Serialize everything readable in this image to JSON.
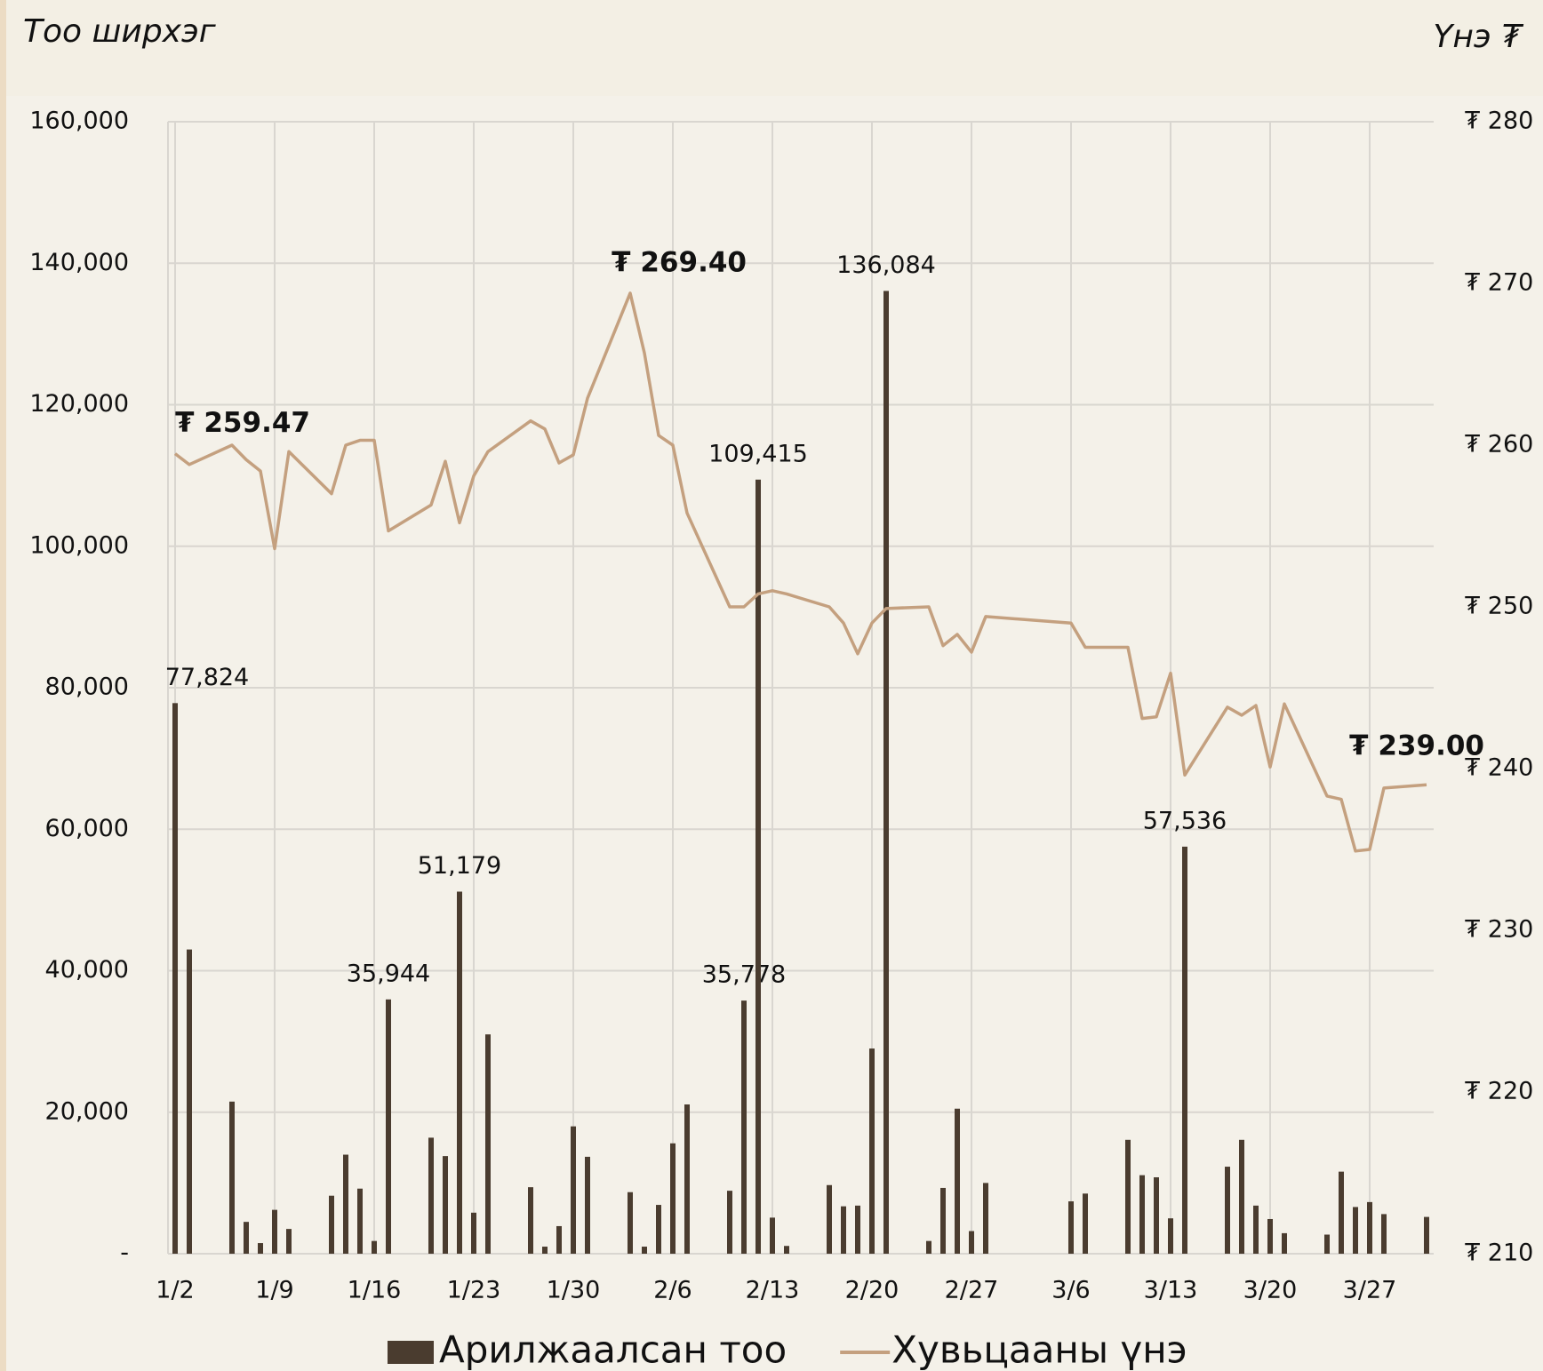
{
  "chart_data": {
    "type": "bar_line",
    "y_label": "Тоо ширхэг",
    "y2_label": "Үнэ ₮",
    "x": [
      "1/2",
      "1/3",
      "1/6",
      "1/7",
      "1/8",
      "1/9",
      "1/10",
      "1/13",
      "1/14",
      "1/15",
      "1/16",
      "1/17",
      "1/20",
      "1/21",
      "1/22",
      "1/23",
      "1/24",
      "1/27",
      "1/28",
      "1/29",
      "1/30",
      "1/31",
      "2/3",
      "2/4",
      "2/5",
      "2/6",
      "2/7",
      "2/10",
      "2/11",
      "2/12",
      "2/13",
      "2/14",
      "2/17",
      "2/18",
      "2/19",
      "2/20",
      "2/21",
      "2/24",
      "2/25",
      "2/26",
      "2/27",
      "2/28",
      "3/6",
      "3/7",
      "3/10",
      "3/11",
      "3/12",
      "3/13",
      "3/14",
      "3/17",
      "3/18",
      "3/19",
      "3/20",
      "3/21",
      "3/24",
      "3/25",
      "3/26",
      "3/27",
      "3/28",
      "3/31"
    ],
    "xlim": [
      "1/2",
      "3/31"
    ],
    "xticks": [
      "1/2",
      "1/9",
      "1/16",
      "1/23",
      "1/30",
      "2/6",
      "2/13",
      "2/20",
      "2/27",
      "3/6",
      "3/13",
      "3/20",
      "3/27"
    ],
    "series": [
      {
        "name": "Арилжаалсан тоо",
        "type": "bar",
        "color": "#4a3c2f",
        "values": [
          77824,
          43000,
          21500,
          4500,
          1500,
          6200,
          3500,
          8200,
          14000,
          9200,
          1800,
          35944,
          16400,
          13800,
          51179,
          5800,
          31000,
          9400,
          1000,
          3900,
          18000,
          13700,
          8700,
          1000,
          6900,
          15600,
          21100,
          8900,
          35778,
          109415,
          5100,
          1100,
          9700,
          6700,
          6800,
          29000,
          136084,
          1800,
          9300,
          20500,
          3200,
          10000,
          7400,
          8500,
          16100,
          11100,
          10800,
          5000,
          57536,
          12300,
          16100,
          6800,
          4900,
          2900,
          2700,
          11600,
          6600,
          7300,
          5600,
          5200
        ],
        "value_labels": [
          "77,824",
          null,
          null,
          null,
          null,
          null,
          null,
          null,
          null,
          null,
          null,
          "35,944",
          null,
          null,
          "51,179",
          null,
          null,
          null,
          null,
          null,
          null,
          null,
          null,
          null,
          null,
          null,
          null,
          null,
          "35,778",
          "109,415",
          null,
          null,
          null,
          null,
          null,
          null,
          "136,084",
          null,
          null,
          null,
          null,
          null,
          null,
          null,
          null,
          null,
          null,
          null,
          "57,536",
          null,
          null,
          null,
          null,
          null,
          null,
          null,
          null,
          null,
          null,
          null
        ]
      },
      {
        "name": "Хувьцааны үнэ",
        "type": "line",
        "axis": "y2",
        "color": "#c4a07f",
        "values": [
          259.47,
          258.8,
          260.0,
          259.1,
          258.4,
          253.6,
          259.6,
          257.0,
          260.0,
          260.3,
          260.3,
          254.7,
          256.3,
          259.0,
          255.2,
          258.1,
          259.6,
          261.5,
          261.0,
          258.9,
          259.4,
          262.9,
          269.4,
          265.7,
          260.6,
          260.0,
          255.8,
          250.0,
          250.0,
          250.8,
          251.0,
          250.8,
          250.0,
          249.0,
          247.1,
          249.0,
          249.9,
          250.0,
          247.6,
          248.3,
          247.2,
          249.4,
          249.0,
          247.5,
          247.5,
          243.1,
          243.2,
          245.9,
          239.6,
          243.8,
          243.3,
          243.9,
          240.1,
          244.0,
          238.3,
          238.1,
          234.9,
          235.0,
          238.8,
          239.0
        ],
        "value_labels": [
          "₮ 259.47",
          null,
          null,
          null,
          null,
          null,
          null,
          null,
          null,
          null,
          null,
          null,
          null,
          null,
          null,
          null,
          null,
          null,
          null,
          null,
          null,
          null,
          "₮ 269.40",
          null,
          null,
          null,
          null,
          null,
          null,
          null,
          null,
          null,
          null,
          null,
          null,
          null,
          null,
          null,
          null,
          null,
          null,
          null,
          null,
          null,
          null,
          null,
          null,
          null,
          null,
          null,
          null,
          null,
          null,
          null,
          null,
          null,
          null,
          null,
          null,
          "₮ 239.00"
        ]
      }
    ],
    "ylim": [
      0,
      160000
    ],
    "yticks": [
      {
        "value": 0,
        "label": "-"
      },
      {
        "value": 20000,
        "label": "20,000"
      },
      {
        "value": 40000,
        "label": "40,000"
      },
      {
        "value": 60000,
        "label": "60,000"
      },
      {
        "value": 80000,
        "label": "80,000"
      },
      {
        "value": 100000,
        "label": "100,000"
      },
      {
        "value": 120000,
        "label": "120,000"
      },
      {
        "value": 140000,
        "label": "140,000"
      },
      {
        "value": 160000,
        "label": "160,000"
      }
    ],
    "y2lim": [
      210,
      280
    ],
    "y2ticks": [
      {
        "value": 210,
        "label": "₮ 210"
      },
      {
        "value": 220,
        "label": "₮ 220"
      },
      {
        "value": 230,
        "label": "₮ 230"
      },
      {
        "value": 240,
        "label": "₮ 240"
      },
      {
        "value": 250,
        "label": "₮ 250"
      },
      {
        "value": 260,
        "label": "₮ 260"
      },
      {
        "value": 270,
        "label": "₮ 270"
      },
      {
        "value": 280,
        "label": "₮ 280"
      }
    ],
    "grid": true,
    "legend": "bottom"
  }
}
